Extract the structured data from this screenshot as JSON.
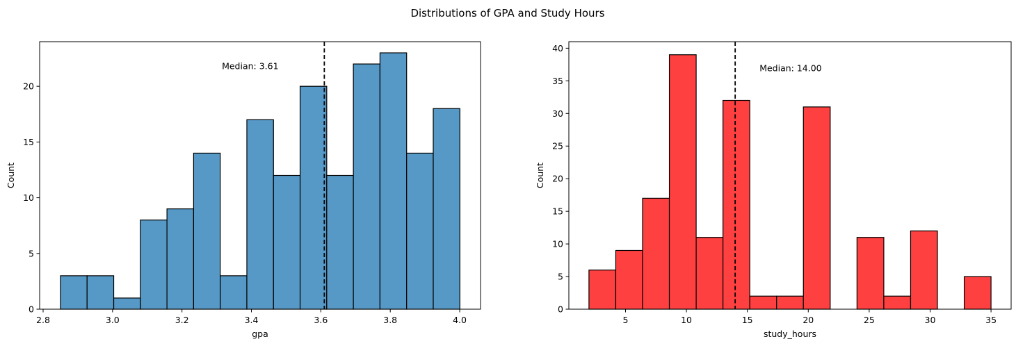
{
  "figure": {
    "title": "Distributions of GPA and Study Hours"
  },
  "chart_data": [
    {
      "type": "bar",
      "subtype": "histogram",
      "color": "#5799c6",
      "xlabel": "gpa",
      "ylabel": "Count",
      "xlim": [
        2.79,
        4.06
      ],
      "ylim": [
        0,
        24
      ],
      "xticks": [
        2.8,
        3.0,
        3.2,
        3.4,
        3.6,
        3.8,
        4.0
      ],
      "xtick_labels": [
        "2.8",
        "3.0",
        "3.2",
        "3.4",
        "3.6",
        "3.8",
        "4.0"
      ],
      "yticks": [
        0,
        5,
        10,
        15,
        20
      ],
      "ytick_labels": [
        "0",
        "5",
        "10",
        "15",
        "20"
      ],
      "bin_start": 2.85,
      "bin_width": 0.0767,
      "values": [
        3,
        3,
        1,
        8,
        9,
        14,
        3,
        17,
        12,
        20,
        12,
        22,
        23,
        14,
        18
      ],
      "median": 3.61,
      "median_label": "Median: 3.61",
      "median_label_anchor": [
        3.315,
        21.8
      ]
    },
    {
      "type": "bar",
      "subtype": "histogram",
      "color": "#ff4040",
      "xlabel": "study_hours",
      "ylabel": "Count",
      "xlim": [
        0.35,
        36.65
      ],
      "ylim": [
        0,
        41
      ],
      "xticks": [
        5,
        10,
        15,
        20,
        25,
        30,
        35
      ],
      "xtick_labels": [
        "5",
        "10",
        "15",
        "20",
        "25",
        "30",
        "35"
      ],
      "yticks": [
        0,
        5,
        10,
        15,
        20,
        25,
        30,
        35,
        40
      ],
      "ytick_labels": [
        "0",
        "5",
        "10",
        "15",
        "20",
        "25",
        "30",
        "35",
        "40"
      ],
      "bin_start": 2,
      "bin_width": 2.2,
      "values": [
        6,
        9,
        17,
        39,
        11,
        32,
        2,
        2,
        31,
        0,
        11,
        2,
        12,
        0,
        5
      ],
      "median": 14.0,
      "median_label": "Median: 14.00",
      "median_label_anchor": [
        16.0,
        36.9
      ]
    }
  ]
}
